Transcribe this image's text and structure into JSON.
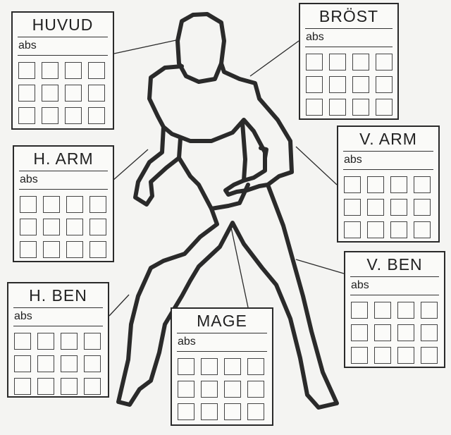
{
  "panels": [
    {
      "id": "huvud",
      "title": "HUVUD",
      "sub": "abs"
    },
    {
      "id": "brost",
      "title": "BRÖST",
      "sub": "abs"
    },
    {
      "id": "h-arm",
      "title": "H. ARM",
      "sub": "abs"
    },
    {
      "id": "v-arm",
      "title": "V. ARM",
      "sub": "abs"
    },
    {
      "id": "h-ben",
      "title": "H. BEN",
      "sub": "abs"
    },
    {
      "id": "v-ben",
      "title": "V. BEN",
      "sub": "abs"
    },
    {
      "id": "mage",
      "title": "MAGE",
      "sub": "abs"
    }
  ],
  "colors": {
    "ink": "#2a2a2a",
    "paper": "#f4f4f2"
  }
}
